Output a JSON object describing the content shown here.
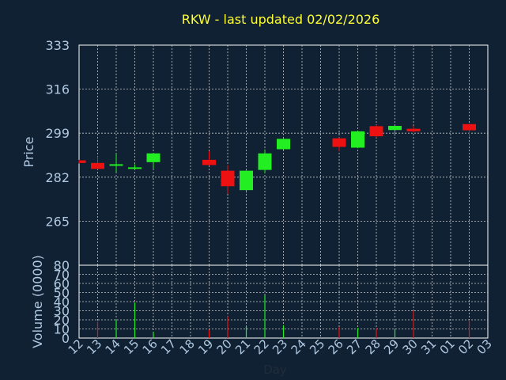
{
  "chart_data": [
    {
      "type": "candlestick",
      "title": "RKW - last updated 02/02/2026",
      "xlabel": "",
      "ylabel": "Price",
      "ylim": [
        248,
        333
      ],
      "yticks": [
        265,
        282,
        299,
        316,
        333
      ],
      "categories": [
        "12",
        "13",
        "14",
        "15",
        "16",
        "17",
        "18",
        "19",
        "20",
        "21",
        "22",
        "23",
        "24",
        "25",
        "26",
        "27",
        "28",
        "29",
        "30",
        "31",
        "01",
        "02",
        "03"
      ],
      "grid": true,
      "candles": [
        {
          "day": "12",
          "open": 288.5,
          "close": 287.5,
          "high": 288.7,
          "low": 287.3
        },
        {
          "day": "13",
          "open": 287.5,
          "close": 285.2,
          "high": 290.0,
          "low": 285.0
        },
        {
          "day": "14",
          "open": 286.6,
          "close": 287.0,
          "high": 291.0,
          "low": 283.8
        },
        {
          "day": "15",
          "open": 285.4,
          "close": 285.8,
          "high": 287.0,
          "low": 285.0
        },
        {
          "day": "16",
          "open": 287.8,
          "close": 291.2,
          "high": 291.3,
          "low": 285.3
        },
        {
          "day": "19",
          "open": 288.7,
          "close": 286.7,
          "high": 292.0,
          "low": 286.5
        },
        {
          "day": "20",
          "open": 284.5,
          "close": 278.5,
          "high": 286.7,
          "low": 275.5
        },
        {
          "day": "21",
          "open": 277.0,
          "close": 284.5,
          "high": 284.6,
          "low": 276.0
        },
        {
          "day": "22",
          "open": 284.8,
          "close": 291.2,
          "high": 292.7,
          "low": 283.5
        },
        {
          "day": "23",
          "open": 292.8,
          "close": 296.8,
          "high": 296.9,
          "low": 292.6
        },
        {
          "day": "26",
          "open": 297.0,
          "close": 293.7,
          "high": 297.3,
          "low": 292.0
        },
        {
          "day": "27",
          "open": 293.4,
          "close": 299.7,
          "high": 299.9,
          "low": 293.2
        },
        {
          "day": "28",
          "open": 301.7,
          "close": 297.8,
          "high": 302.2,
          "low": 297.3
        },
        {
          "day": "29",
          "open": 300.2,
          "close": 301.8,
          "high": 302.0,
          "low": 298.0
        },
        {
          "day": "30",
          "open": 300.7,
          "close": 299.7,
          "high": 301.9,
          "low": 299.3
        },
        {
          "day": "02",
          "open": 302.5,
          "close": 300.1,
          "high": 302.6,
          "low": 297.5
        }
      ],
      "colors": {
        "up": "#22ee22",
        "down": "#ee1111"
      }
    },
    {
      "type": "bar",
      "title": "",
      "xlabel": "Day",
      "ylabel": "Volume (0000)",
      "ylim": [
        0,
        80
      ],
      "yticks": [
        0,
        10,
        20,
        30,
        40,
        50,
        60,
        70,
        80
      ],
      "categories": [
        "12",
        "13",
        "14",
        "15",
        "16",
        "17",
        "18",
        "19",
        "20",
        "21",
        "22",
        "23",
        "24",
        "25",
        "26",
        "27",
        "28",
        "29",
        "30",
        "31",
        "01",
        "02",
        "03"
      ],
      "grid": true,
      "bars": [
        {
          "day": "13",
          "value": 18,
          "dir": "down"
        },
        {
          "day": "14",
          "value": 20,
          "dir": "up"
        },
        {
          "day": "15",
          "value": 39,
          "dir": "up"
        },
        {
          "day": "16",
          "value": 7,
          "dir": "up"
        },
        {
          "day": "19",
          "value": 9,
          "dir": "down"
        },
        {
          "day": "20",
          "value": 24,
          "dir": "down"
        },
        {
          "day": "21",
          "value": 13,
          "dir": "up"
        },
        {
          "day": "22",
          "value": 47,
          "dir": "up"
        },
        {
          "day": "23",
          "value": 14,
          "dir": "up"
        },
        {
          "day": "26",
          "value": 12,
          "dir": "down"
        },
        {
          "day": "27",
          "value": 11,
          "dir": "up"
        },
        {
          "day": "28",
          "value": 11,
          "dir": "down"
        },
        {
          "day": "29",
          "value": 10,
          "dir": "up"
        },
        {
          "day": "30",
          "value": 30,
          "dir": "down"
        },
        {
          "day": "02",
          "value": 20,
          "dir": "down"
        }
      ],
      "colors": {
        "up": "#22ee22",
        "down": "#ee1111"
      }
    }
  ],
  "style": {
    "background": "#0f2133",
    "title_color": "#ffff33",
    "axis_text_color": "#b0c8e0",
    "grid_color": "#c8c8c8",
    "frame_color": "#ffffff"
  }
}
